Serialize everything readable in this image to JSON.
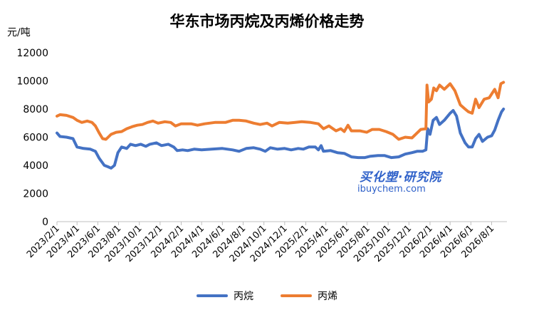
{
  "chart_data": {
    "type": "line",
    "title": "华东市场丙烷及丙烯价格走势",
    "ylabel": "元/吨",
    "xlabel": "",
    "ylim": [
      0,
      12000
    ],
    "y_ticks": [
      "0",
      "2000",
      "4000",
      "6000",
      "8000",
      "10000",
      "12000"
    ],
    "x_range": [
      "2023-02-01",
      "2026-09-15"
    ],
    "x_tick_dates": [
      "2023-02-01",
      "2023-04-01",
      "2023-06-01",
      "2023-08-01",
      "2023-10-01",
      "2023-12-01",
      "2024-02-01",
      "2024-04-01",
      "2024-06-01",
      "2024-08-01",
      "2024-10-01",
      "2024-12-01",
      "2025-02-01",
      "2025-04-01",
      "2025-06-01",
      "2025-08-01",
      "2025-10-01",
      "2025-12-01",
      "2026-02-01",
      "2026-04-01",
      "2026-06-01",
      "2026-08-01"
    ],
    "x_tick_labels": [
      "2023/2/1",
      "2023/4/1",
      "2023/6/1",
      "2023/8/1",
      "2023/10/1",
      "2023/12/1",
      "2024/2/1",
      "2024/4/1",
      "2024/6/1",
      "2024/8/1",
      "2024/10/1",
      "2024/12/1",
      "2025/2/1",
      "2025/4/1",
      "2025/6/1",
      "2025/8/1",
      "2025/10/1",
      "2025/12/1",
      "2026/2/1",
      "2026/4/1",
      "2026/6/1",
      "2026/8/1"
    ],
    "grid": false,
    "legend_position": "bottom",
    "series": [
      {
        "name": "丙烷",
        "color": "#4472c4",
        "points": [
          [
            "2023-02-01",
            6300
          ],
          [
            "2023-02-10",
            6050
          ],
          [
            "2023-03-01",
            6000
          ],
          [
            "2023-03-20",
            5900
          ],
          [
            "2023-04-01",
            5300
          ],
          [
            "2023-04-20",
            5200
          ],
          [
            "2023-05-10",
            5150
          ],
          [
            "2023-05-25",
            5000
          ],
          [
            "2023-06-05",
            4500
          ],
          [
            "2023-06-20",
            4000
          ],
          [
            "2023-07-01",
            3900
          ],
          [
            "2023-07-10",
            3800
          ],
          [
            "2023-07-20",
            4000
          ],
          [
            "2023-07-30",
            4900
          ],
          [
            "2023-08-10",
            5300
          ],
          [
            "2023-08-25",
            5200
          ],
          [
            "2023-09-05",
            5500
          ],
          [
            "2023-09-20",
            5400
          ],
          [
            "2023-10-05",
            5500
          ],
          [
            "2023-10-20",
            5350
          ],
          [
            "2023-11-01",
            5500
          ],
          [
            "2023-11-20",
            5600
          ],
          [
            "2023-12-05",
            5400
          ],
          [
            "2023-12-25",
            5500
          ],
          [
            "2024-01-10",
            5300
          ],
          [
            "2024-01-20",
            5050
          ],
          [
            "2024-02-05",
            5100
          ],
          [
            "2024-02-20",
            5050
          ],
          [
            "2024-03-10",
            5150
          ],
          [
            "2024-04-01",
            5100
          ],
          [
            "2024-05-01",
            5150
          ],
          [
            "2024-06-01",
            5200
          ],
          [
            "2024-07-01",
            5100
          ],
          [
            "2024-07-20",
            5000
          ],
          [
            "2024-08-10",
            5200
          ],
          [
            "2024-09-01",
            5250
          ],
          [
            "2024-09-20",
            5150
          ],
          [
            "2024-10-05",
            5000
          ],
          [
            "2024-10-20",
            5250
          ],
          [
            "2024-11-10",
            5150
          ],
          [
            "2024-12-01",
            5200
          ],
          [
            "2024-12-20",
            5100
          ],
          [
            "2025-01-10",
            5200
          ],
          [
            "2025-01-25",
            5150
          ],
          [
            "2025-02-10",
            5300
          ],
          [
            "2025-03-01",
            5300
          ],
          [
            "2025-03-10",
            5100
          ],
          [
            "2025-03-18",
            5400
          ],
          [
            "2025-03-25",
            5000
          ],
          [
            "2025-04-15",
            5050
          ],
          [
            "2025-05-05",
            4900
          ],
          [
            "2025-05-25",
            4850
          ],
          [
            "2025-06-15",
            4600
          ],
          [
            "2025-07-05",
            4550
          ],
          [
            "2025-07-25",
            4550
          ],
          [
            "2025-08-10",
            4650
          ],
          [
            "2025-09-01",
            4700
          ],
          [
            "2025-09-20",
            4700
          ],
          [
            "2025-10-10",
            4550
          ],
          [
            "2025-11-01",
            4600
          ],
          [
            "2025-11-20",
            4800
          ],
          [
            "2025-12-10",
            4900
          ],
          [
            "2025-12-25",
            5000
          ],
          [
            "2026-01-10",
            5000
          ],
          [
            "2026-01-20",
            5100
          ],
          [
            "2026-01-25",
            6600
          ],
          [
            "2026-02-01",
            6200
          ],
          [
            "2026-02-10",
            7200
          ],
          [
            "2026-02-20",
            7400
          ],
          [
            "2026-03-01",
            6900
          ],
          [
            "2026-03-15",
            7200
          ],
          [
            "2026-04-01",
            7700
          ],
          [
            "2026-04-10",
            7900
          ],
          [
            "2026-04-20",
            7500
          ],
          [
            "2026-05-01",
            6300
          ],
          [
            "2026-05-15",
            5600
          ],
          [
            "2026-05-25",
            5300
          ],
          [
            "2026-06-05",
            5300
          ],
          [
            "2026-06-15",
            5900
          ],
          [
            "2026-06-25",
            6200
          ],
          [
            "2026-07-05",
            5700
          ],
          [
            "2026-07-20",
            6000
          ],
          [
            "2026-08-01",
            6100
          ],
          [
            "2026-08-10",
            6500
          ],
          [
            "2026-08-20",
            7200
          ],
          [
            "2026-08-30",
            7800
          ],
          [
            "2026-09-05",
            8000
          ]
        ]
      },
      {
        "name": "丙烯",
        "color": "#ed7d31",
        "points": [
          [
            "2023-02-01",
            7500
          ],
          [
            "2023-02-10",
            7600
          ],
          [
            "2023-03-01",
            7550
          ],
          [
            "2023-03-20",
            7400
          ],
          [
            "2023-04-01",
            7200
          ],
          [
            "2023-04-15",
            7050
          ],
          [
            "2023-05-01",
            7150
          ],
          [
            "2023-05-15",
            7050
          ],
          [
            "2023-05-25",
            6800
          ],
          [
            "2023-06-05",
            6300
          ],
          [
            "2023-06-15",
            5900
          ],
          [
            "2023-06-25",
            5850
          ],
          [
            "2023-07-10",
            6200
          ],
          [
            "2023-07-25",
            6350
          ],
          [
            "2023-08-10",
            6400
          ],
          [
            "2023-08-25",
            6600
          ],
          [
            "2023-09-10",
            6750
          ],
          [
            "2023-09-25",
            6850
          ],
          [
            "2023-10-10",
            6900
          ],
          [
            "2023-10-25",
            7050
          ],
          [
            "2023-11-10",
            7150
          ],
          [
            "2023-11-25",
            7000
          ],
          [
            "2023-12-15",
            7100
          ],
          [
            "2024-01-01",
            7050
          ],
          [
            "2024-01-15",
            6800
          ],
          [
            "2024-02-01",
            6950
          ],
          [
            "2024-03-01",
            6950
          ],
          [
            "2024-03-20",
            6850
          ],
          [
            "2024-04-10",
            6950
          ],
          [
            "2024-05-10",
            7050
          ],
          [
            "2024-06-10",
            7050
          ],
          [
            "2024-07-01",
            7200
          ],
          [
            "2024-07-20",
            7200
          ],
          [
            "2024-08-10",
            7150
          ],
          [
            "2024-09-01",
            7000
          ],
          [
            "2024-09-20",
            6900
          ],
          [
            "2024-10-10",
            7000
          ],
          [
            "2024-10-25",
            6800
          ],
          [
            "2024-11-15",
            7050
          ],
          [
            "2024-12-10",
            7000
          ],
          [
            "2025-01-01",
            7050
          ],
          [
            "2025-01-20",
            7100
          ],
          [
            "2025-02-15",
            7050
          ],
          [
            "2025-03-10",
            6950
          ],
          [
            "2025-03-25",
            6600
          ],
          [
            "2025-04-10",
            6800
          ],
          [
            "2025-05-01",
            6450
          ],
          [
            "2025-05-15",
            6600
          ],
          [
            "2025-05-25",
            6400
          ],
          [
            "2025-06-05",
            6850
          ],
          [
            "2025-06-15",
            6450
          ],
          [
            "2025-07-10",
            6450
          ],
          [
            "2025-07-30",
            6350
          ],
          [
            "2025-08-15",
            6550
          ],
          [
            "2025-09-05",
            6550
          ],
          [
            "2025-09-25",
            6400
          ],
          [
            "2025-10-15",
            6200
          ],
          [
            "2025-11-01",
            5850
          ],
          [
            "2025-11-20",
            6000
          ],
          [
            "2025-12-10",
            5950
          ],
          [
            "2025-12-25",
            6300
          ],
          [
            "2026-01-05",
            6550
          ],
          [
            "2026-01-20",
            6600
          ],
          [
            "2026-01-23",
            9700
          ],
          [
            "2026-01-28",
            8500
          ],
          [
            "2026-02-05",
            8700
          ],
          [
            "2026-02-12",
            9500
          ],
          [
            "2026-02-20",
            9300
          ],
          [
            "2026-03-01",
            9700
          ],
          [
            "2026-03-15",
            9400
          ],
          [
            "2026-04-01",
            9800
          ],
          [
            "2026-04-15",
            9300
          ],
          [
            "2026-05-01",
            8300
          ],
          [
            "2026-05-15",
            8000
          ],
          [
            "2026-05-25",
            7800
          ],
          [
            "2026-06-05",
            7700
          ],
          [
            "2026-06-15",
            8700
          ],
          [
            "2026-06-25",
            8100
          ],
          [
            "2026-07-10",
            8700
          ],
          [
            "2026-07-25",
            8800
          ],
          [
            "2026-08-10",
            9400
          ],
          [
            "2026-08-20",
            8800
          ],
          [
            "2026-08-28",
            9800
          ],
          [
            "2026-09-05",
            9900
          ]
        ]
      }
    ]
  },
  "watermark": {
    "brand": "买化塑·研究院",
    "site": "ibuychem.com"
  }
}
